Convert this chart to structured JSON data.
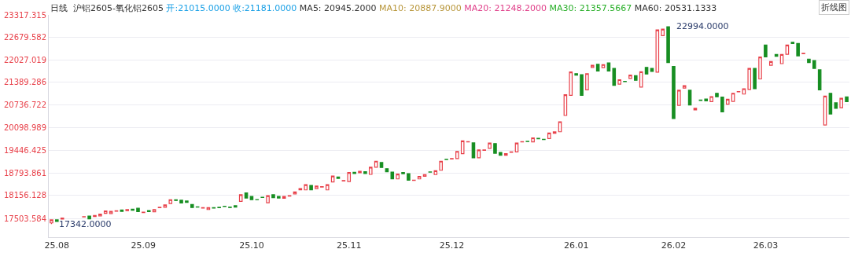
{
  "chart_data": {
    "type": "candlestick",
    "title": "日线  沪铝2605-氧化铝2605",
    "annotations": [
      "开:21015.0000",
      "收:21181.0000",
      "MA5: 20945.2000",
      "MA10: 20887.9000",
      "MA20: 21248.2000",
      "MA30: 21357.5667",
      "MA60: 20531.1333",
      "折线图",
      "22994.0000",
      "17342.0000"
    ],
    "categories": [
      null,
      "25.08",
      null,
      null,
      null,
      null,
      null,
      null,
      null,
      null,
      null,
      null,
      null,
      null,
      null,
      null,
      null,
      "25.09",
      null,
      null,
      null,
      null,
      null,
      null,
      null,
      null,
      null,
      null,
      null,
      null,
      null,
      null,
      null,
      null,
      null,
      null,
      null,
      "25.10",
      null,
      null,
      null,
      null,
      null,
      null,
      null,
      null,
      null,
      null,
      null,
      null,
      null,
      null,
      null,
      null,
      null,
      "25.11",
      null,
      null,
      null,
      null,
      null,
      null,
      null,
      null,
      null,
      null,
      null,
      null,
      null,
      null,
      null,
      null,
      null,
      null,
      "25.12",
      null,
      null,
      null,
      null,
      null,
      null,
      null,
      null,
      null,
      null,
      null,
      null,
      null,
      null,
      null,
      null,
      null,
      null,
      null,
      null,
      null,
      null,
      "26.01",
      null,
      null,
      null,
      null,
      null,
      null,
      null,
      null,
      null,
      null,
      null,
      null,
      null,
      null,
      null,
      null,
      null,
      "26.02",
      null,
      null,
      null,
      null,
      null,
      null,
      null,
      null,
      null,
      null,
      null,
      null,
      null,
      null,
      null,
      null,
      "26.03",
      null,
      null,
      null,
      null,
      null,
      null,
      null,
      null,
      null,
      null,
      null,
      null,
      null,
      null,
      null
    ],
    "ohlc": [
      [
        17375,
        17461,
        17342,
        17461
      ],
      [
        17461,
        17461,
        17418,
        17418
      ],
      [
        17482,
        17510,
        17482,
        17510
      ],
      null,
      null,
      null,
      [
        17545,
        17554,
        17545,
        17554
      ],
      [
        17569,
        17569,
        17489,
        17489
      ],
      [
        17554,
        17584,
        17554,
        17584
      ],
      [
        17575,
        17627,
        17575,
        17627
      ],
      [
        17649,
        17713,
        17649,
        17713
      ],
      [
        17640,
        17705,
        17640,
        17705
      ],
      [
        17710,
        17720,
        17710,
        17720
      ],
      [
        17741,
        17741,
        17705,
        17705
      ],
      [
        17726,
        17756,
        17726,
        17756
      ],
      [
        17763,
        17763,
        17735,
        17735
      ],
      [
        17791,
        17791,
        17698,
        17698
      ],
      [
        17670,
        17680,
        17670,
        17680
      ],
      [
        17726,
        17726,
        17698,
        17698
      ],
      [
        17692,
        17756,
        17692,
        17756
      ],
      [
        17810,
        17821,
        17810,
        17821
      ],
      [
        17821,
        17886,
        17821,
        17886
      ],
      [
        17929,
        18037,
        17929,
        18037
      ],
      [
        18037,
        18037,
        18015,
        18015
      ],
      [
        18022,
        18022,
        17942,
        17942
      ],
      [
        18000,
        18000,
        17963,
        17963
      ],
      [
        17899,
        17899,
        17812,
        17812
      ],
      [
        17834,
        17834,
        17828,
        17828
      ],
      [
        17800,
        17810,
        17800,
        17810
      ],
      [
        17756,
        17812,
        17756,
        17812
      ],
      [
        17810,
        17810,
        17800,
        17800
      ],
      [
        17820,
        17820,
        17810,
        17810
      ],
      [
        17850,
        17850,
        17840,
        17840
      ],
      [
        17825,
        17825,
        17815,
        17815
      ],
      [
        17864,
        17864,
        17828,
        17828
      ],
      [
        17989,
        18179,
        17989,
        18179
      ],
      [
        18231,
        18231,
        18086,
        18086
      ],
      [
        18130,
        18130,
        18037,
        18037
      ],
      [
        18042,
        18042,
        18037,
        18037
      ],
      [
        18110,
        18110,
        18100,
        18100
      ],
      [
        17950,
        18151,
        17950,
        18151
      ],
      [
        18179,
        18179,
        18093,
        18093
      ],
      [
        18130,
        18130,
        18086,
        18086
      ],
      [
        18080,
        18130,
        18080,
        18130
      ],
      [
        18140,
        18151,
        18140,
        18151
      ],
      [
        18201,
        18259,
        18201,
        18259
      ],
      [
        18317,
        18352,
        18317,
        18352
      ],
      [
        18317,
        18468,
        18317,
        18468
      ],
      [
        18447,
        18447,
        18317,
        18317
      ],
      [
        18352,
        18425,
        18352,
        18425
      ],
      [
        18400,
        18410,
        18400,
        18410
      ],
      [
        18317,
        18468,
        18317,
        18468
      ],
      [
        18546,
        18712,
        18546,
        18712
      ],
      [
        18684,
        18684,
        18647,
        18647
      ],
      [
        18570,
        18582,
        18570,
        18582
      ],
      [
        18554,
        18813,
        18554,
        18813
      ],
      [
        18820,
        18820,
        18783,
        18783
      ],
      [
        18806,
        18848,
        18806,
        18848
      ],
      [
        18835,
        18835,
        18783,
        18783
      ],
      [
        18761,
        18964,
        18761,
        18964
      ],
      [
        18964,
        19137,
        18964,
        19137
      ],
      [
        19100,
        19100,
        18958,
        18958
      ],
      [
        18921,
        18921,
        18835,
        18835
      ],
      [
        18826,
        18826,
        18632,
        18632
      ],
      [
        18632,
        18770,
        18632,
        18770
      ],
      [
        18813,
        18813,
        18777,
        18777
      ],
      [
        18783,
        18783,
        18597,
        18597
      ],
      [
        18590,
        18597,
        18590,
        18597
      ],
      [
        18632,
        18705,
        18632,
        18705
      ],
      [
        18705,
        18755,
        18705,
        18755
      ],
      [
        18830,
        18830,
        18826,
        18826
      ],
      [
        18755,
        18863,
        18755,
        18863
      ],
      [
        18878,
        19137,
        18878,
        19137
      ],
      [
        19190,
        19190,
        19186,
        19186
      ],
      [
        19200,
        19214,
        19200,
        19214
      ],
      [
        19214,
        19417,
        19214,
        19417
      ],
      [
        19352,
        19719,
        19352,
        19719
      ],
      [
        19690,
        19698,
        19690,
        19698
      ],
      [
        19661,
        19661,
        19236,
        19236
      ],
      [
        19236,
        19460,
        19236,
        19460
      ],
      [
        19450,
        19460,
        19450,
        19460
      ],
      [
        19503,
        19654,
        19503,
        19654
      ],
      [
        19639,
        19639,
        19365,
        19365
      ],
      [
        19387,
        19387,
        19309,
        19309
      ],
      [
        19309,
        19352,
        19309,
        19352
      ],
      [
        19390,
        19402,
        19390,
        19402
      ],
      [
        19402,
        19654,
        19402,
        19654
      ],
      [
        19690,
        19698,
        19690,
        19698
      ],
      [
        19705,
        19705,
        19698,
        19698
      ],
      [
        19689,
        19805,
        19689,
        19805
      ],
      [
        19790,
        19790,
        19780,
        19780
      ],
      [
        19762,
        19762,
        19755,
        19755
      ],
      [
        19784,
        19941,
        19784,
        19941
      ],
      [
        19935,
        19978,
        19935,
        19978
      ],
      [
        19978,
        20265,
        19978,
        20265
      ],
      [
        20444,
        21035,
        20444,
        21035
      ],
      [
        21020,
        21688,
        21020,
        21688
      ],
      [
        21639,
        21639,
        21596,
        21596
      ],
      [
        21609,
        21609,
        21020,
        21020
      ],
      [
        21177,
        21639,
        21177,
        21639
      ],
      [
        21816,
        21876,
        21816,
        21876
      ],
      [
        21904,
        21904,
        21717,
        21717
      ],
      [
        21811,
        21898,
        21811,
        21898
      ],
      [
        21947,
        21947,
        21717,
        21717
      ],
      [
        21790,
        21790,
        21307,
        21307
      ],
      [
        21337,
        21466,
        21337,
        21466
      ],
      [
        21420,
        21420,
        21414,
        21414
      ],
      [
        21501,
        21596,
        21501,
        21596
      ],
      [
        21581,
        21581,
        21451,
        21451
      ],
      [
        21257,
        21695,
        21257,
        21695
      ],
      [
        21818,
        21818,
        21631,
        21631
      ],
      [
        21790,
        21790,
        21703,
        21703
      ],
      [
        21682,
        22890,
        21682,
        22890
      ],
      [
        22724,
        22912,
        22724,
        22912
      ],
      [
        22980,
        22994,
        21954,
        21954
      ],
      [
        21846,
        21846,
        20358,
        20358
      ],
      [
        20733,
        21164,
        20733,
        21164
      ],
      [
        21229,
        21294,
        21229,
        21294
      ],
      [
        21164,
        21164,
        20746,
        20746
      ],
      [
        20603,
        20647,
        20603,
        20647
      ],
      [
        20885,
        20885,
        20875,
        20875
      ],
      [
        20912,
        20912,
        20862,
        20862
      ],
      [
        20841,
        20983,
        20841,
        20983
      ],
      [
        21078,
        21078,
        20977,
        20977
      ],
      [
        20970,
        20970,
        20545,
        20545
      ],
      [
        20767,
        20905,
        20767,
        20905
      ],
      [
        20847,
        21078,
        20847,
        21078
      ],
      [
        21120,
        21128,
        21120,
        21128
      ],
      [
        21056,
        21207,
        21056,
        21207
      ],
      [
        21186,
        21790,
        21186,
        21790
      ],
      [
        21790,
        21790,
        21207,
        21207
      ],
      [
        21488,
        22113,
        21488,
        22113
      ],
      [
        22458,
        22458,
        22120,
        22120
      ],
      [
        21876,
        21984,
        21876,
        21984
      ],
      [
        22185,
        22185,
        22135,
        22135
      ],
      [
        21926,
        22185,
        21926,
        22185
      ],
      [
        22191,
        22458,
        22191,
        22458
      ],
      [
        22536,
        22536,
        22502,
        22502
      ],
      [
        22502,
        22502,
        22148,
        22148
      ],
      [
        22210,
        22221,
        22210,
        22221
      ],
      [
        22055,
        22055,
        21954,
        21954
      ],
      [
        22012,
        22012,
        21790,
        21790
      ],
      [
        21747,
        21747,
        21177,
        21177
      ],
      [
        20172,
        20998,
        20172,
        20998
      ],
      [
        21078,
        21078,
        20487,
        20487
      ],
      [
        20804,
        20804,
        20647,
        20647
      ],
      [
        20668,
        20934,
        20668,
        20934
      ],
      [
        20977,
        20977,
        20841,
        20841
      ]
    ],
    "ylim": [
      16965,
      23317.315
    ],
    "yticks": [
      17503.584,
      18156.128,
      18793.861,
      19446.425,
      20098.989,
      20736.722,
      21389.286,
      22027.019,
      22679.582,
      23317.315
    ],
    "grid": "y"
  }
}
